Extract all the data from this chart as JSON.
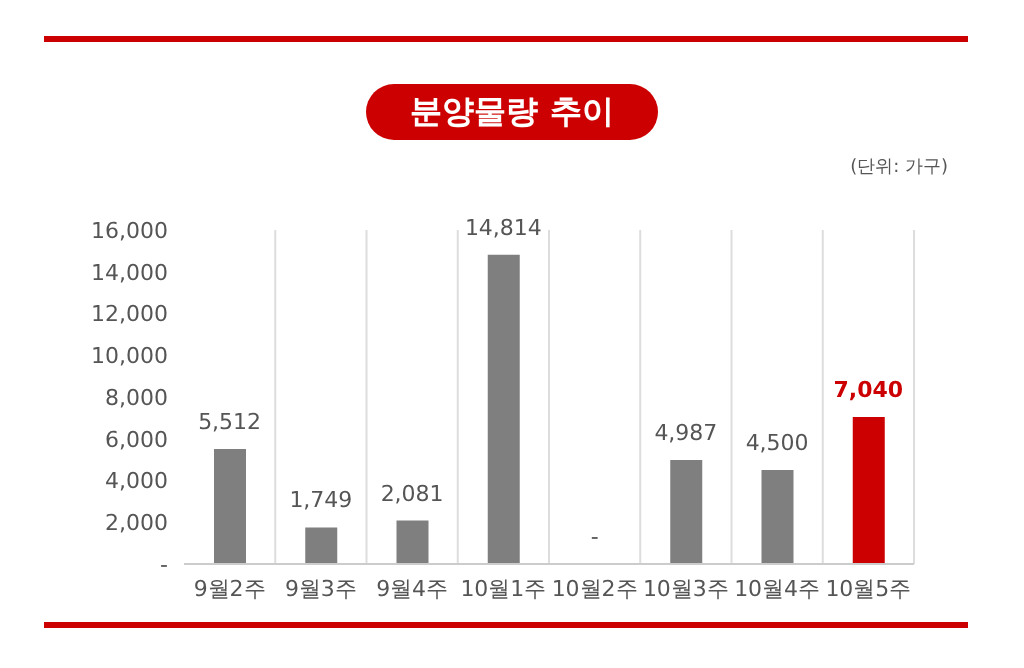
{
  "chart_data": {
    "type": "bar",
    "title": "분양물량 추이",
    "subtitle": "(단위: 가구)",
    "categories": [
      "9월2주",
      "9월3주",
      "9월4주",
      "10월1주",
      "10월2주",
      "10월3주",
      "10월4주",
      "10월5주"
    ],
    "values": [
      5512,
      1749,
      2081,
      14814,
      0,
      4987,
      4500,
      7040
    ],
    "colors": [
      "#7f7f7f",
      "#7f7f7f",
      "#7f7f7f",
      "#7f7f7f",
      "#7f7f7f",
      "#7f7f7f",
      "#7f7f7f",
      "#cc0000"
    ],
    "value_labels": [
      "5,512",
      "1,749",
      "2,081",
      "14,814",
      "-",
      "4,987",
      "4,500",
      "7,040"
    ],
    "ylim": [
      0,
      16000
    ],
    "yticks": [
      {
        "value": 0,
        "label": "-"
      },
      {
        "value": 2000,
        "label": "2,000"
      },
      {
        "value": 4000,
        "label": "4,000"
      },
      {
        "value": 6000,
        "label": "6,000"
      },
      {
        "value": 8000,
        "label": "8,000"
      },
      {
        "value": 10000,
        "label": "10,000"
      },
      {
        "value": 12000,
        "label": "12,000"
      },
      {
        "value": 14000,
        "label": "14,000"
      },
      {
        "value": 16000,
        "label": "16,000"
      }
    ],
    "grid": "x",
    "legend": false
  }
}
